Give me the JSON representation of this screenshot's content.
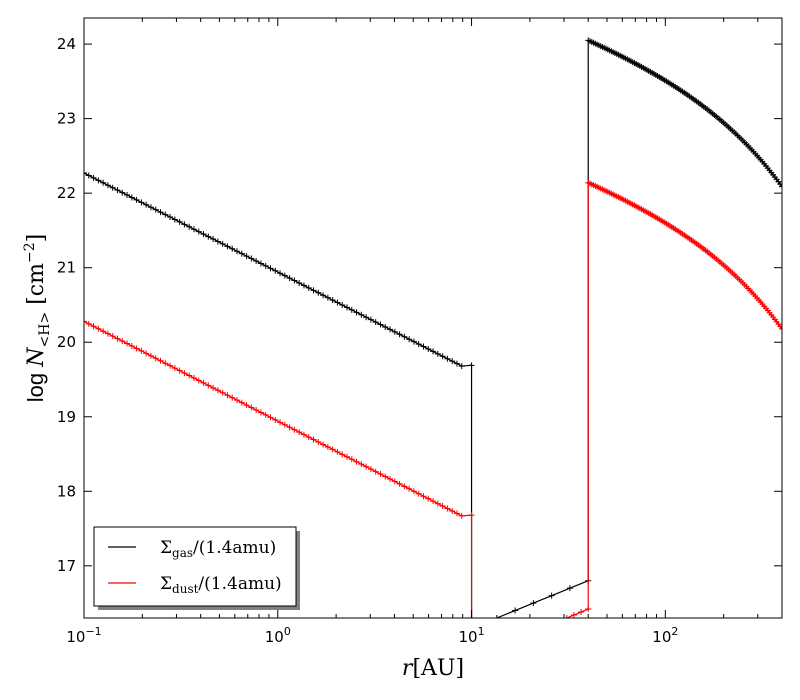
{
  "chart_data": {
    "type": "line",
    "xscale": "log",
    "xlim": [
      0.1,
      400
    ],
    "ylim": [
      16.3,
      24.35
    ],
    "xlabel": {
      "main": "r",
      "sub": "",
      "rest": "[AU]"
    },
    "ylabel": {
      "prefix": "log ",
      "main": "N",
      "sub": "<H>",
      "rest": " [cm",
      "sup": "−2",
      "end": "]"
    },
    "x_ticks": [
      {
        "value": 0.1,
        "base": "10",
        "exp": "−1"
      },
      {
        "value": 1,
        "base": "10",
        "exp": "0"
      },
      {
        "value": 10,
        "base": "10",
        "exp": "1"
      },
      {
        "value": 100,
        "base": "10",
        "exp": "2"
      }
    ],
    "y_ticks": [
      17,
      18,
      19,
      20,
      21,
      22,
      23,
      24
    ],
    "y_tick_labels": [
      "17",
      "18",
      "19",
      "20",
      "21",
      "22",
      "23",
      "24"
    ],
    "legend": {
      "location": "lower-left",
      "entries": [
        {
          "symbol": "Σ",
          "sub": "gas",
          "rest": "/(1.4amu)",
          "color": "#000000"
        },
        {
          "symbol": "Σ",
          "sub": "dust",
          "rest": "/(1.4amu)",
          "color": "#ff0000"
        }
      ]
    },
    "series": [
      {
        "color": "#000000",
        "segments": [
          {
            "type": "powerlaw",
            "x0": 0.1,
            "y0": 22.27,
            "x1": 8.9,
            "y1": 19.68,
            "n": 80,
            "end": [
              [
                10,
                19.69
              ],
              [
                10,
                16.2
              ]
            ]
          },
          {
            "type": "powerlaw",
            "x0": 13.5,
            "y0": 16.3,
            "x1": 40,
            "y1": 16.8,
            "n": 6
          },
          {
            "type": "taper",
            "x0": 40,
            "x1": 400,
            "y0": 24.05,
            "slope": -0.92,
            "rc": 150,
            "gamma": 1.0,
            "n": 110,
            "lead": [
              40,
              16.8
            ]
          }
        ]
      },
      {
        "color": "#ff0000",
        "segments": [
          {
            "type": "powerlaw",
            "x0": 0.1,
            "y0": 20.28,
            "x1": 8.9,
            "y1": 17.67,
            "n": 80,
            "end": [
              [
                10,
                17.68
              ],
              [
                10,
                16.2
              ]
            ]
          },
          {
            "type": "powerlaw",
            "x0": 31,
            "y0": 16.3,
            "x1": 40,
            "y1": 16.42,
            "n": 4
          },
          {
            "type": "taper",
            "x0": 40,
            "x1": 400,
            "y0": 22.14,
            "slope": -0.92,
            "rc": 150,
            "gamma": 1.0,
            "n": 110,
            "lead": [
              40,
              16.42
            ]
          }
        ]
      }
    ]
  }
}
